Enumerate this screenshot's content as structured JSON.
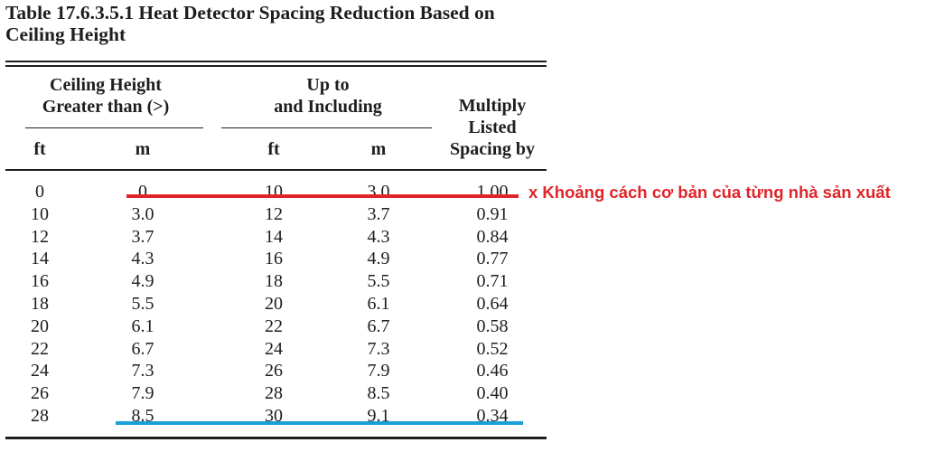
{
  "title": {
    "line1": "Table 17.6.3.5.1  Heat Detector Spacing Reduction Based on",
    "line2": "Ceiling Height"
  },
  "headers": {
    "greater_than_line1": "Ceiling Height",
    "greater_than_line2": "Greater than (>)",
    "up_to_line1": "Up to",
    "up_to_line2": "and Including",
    "multiply_line1": "Multiply",
    "multiply_line2": "Listed",
    "multiply_line3": "Spacing by",
    "unit_ft_1": "ft",
    "unit_m_1": "m",
    "unit_ft_2": "ft",
    "unit_m_2": "m"
  },
  "rows": [
    [
      "0",
      "0",
      "10",
      "3.0",
      "1.00"
    ],
    [
      "10",
      "3.0",
      "12",
      "3.7",
      "0.91"
    ],
    [
      "12",
      "3.7",
      "14",
      "4.3",
      "0.84"
    ],
    [
      "14",
      "4.3",
      "16",
      "4.9",
      "0.77"
    ],
    [
      "16",
      "4.9",
      "18",
      "5.5",
      "0.71"
    ],
    [
      "18",
      "5.5",
      "20",
      "6.1",
      "0.64"
    ],
    [
      "20",
      "6.1",
      "22",
      "6.7",
      "0.58"
    ],
    [
      "22",
      "6.7",
      "24",
      "7.3",
      "0.52"
    ],
    [
      "24",
      "7.3",
      "26",
      "7.9",
      "0.46"
    ],
    [
      "26",
      "7.9",
      "28",
      "8.5",
      "0.40"
    ],
    [
      "28",
      "8.5",
      "30",
      "9.1",
      "0.34"
    ]
  ],
  "annotation": {
    "text": "x Khoảng cách cơ bản của từng nhà sản xuất",
    "color": "#e0242a"
  },
  "markers": {
    "red": "#e0242a",
    "blue": "#1a9fd9"
  }
}
